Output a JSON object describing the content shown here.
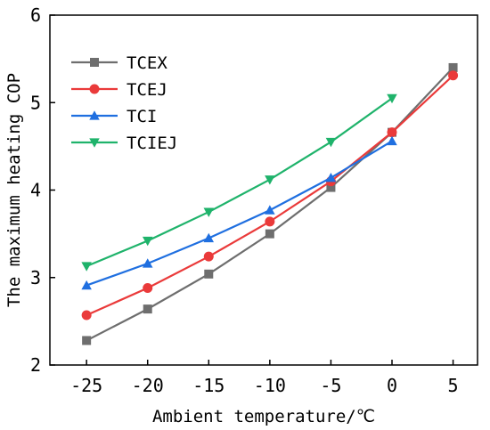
{
  "chart_data": {
    "type": "line",
    "title": "",
    "xlabel": "Ambient temperature/℃",
    "ylabel": "The maximum heating COP",
    "xlim": [
      -28,
      7
    ],
    "ylim": [
      2,
      6
    ],
    "xticks": [
      -25,
      -20,
      -15,
      -10,
      -5,
      0,
      5
    ],
    "xtick_labels": [
      "-25",
      "-20",
      "-15",
      "-10",
      "-5",
      "0",
      "5"
    ],
    "yticks": [
      2,
      3,
      4,
      5,
      6
    ],
    "ytick_labels": [
      "2",
      "3",
      "4",
      "5",
      "6"
    ],
    "grid": false,
    "legend_position": "top-left",
    "series": [
      {
        "name": "TCEX",
        "color": "#6e6e6e",
        "marker": "square",
        "x": [
          -25,
          -20,
          -15,
          -10,
          -5,
          0,
          5
        ],
        "y": [
          2.28,
          2.64,
          3.04,
          3.5,
          4.03,
          4.66,
          5.4
        ]
      },
      {
        "name": "TCEJ",
        "color": "#ea3a3a",
        "marker": "circle",
        "x": [
          -25,
          -20,
          -15,
          -10,
          -5,
          0,
          5
        ],
        "y": [
          2.57,
          2.88,
          3.24,
          3.64,
          4.1,
          4.66,
          5.31
        ]
      },
      {
        "name": "TCI",
        "color": "#1f6fe0",
        "marker": "triangle-up",
        "x": [
          -25,
          -20,
          -15,
          -10,
          -5,
          0
        ],
        "y": [
          2.91,
          3.16,
          3.45,
          3.77,
          4.14,
          4.56
        ]
      },
      {
        "name": "TCIEJ",
        "color": "#1fb36b",
        "marker": "triangle-down",
        "x": [
          -25,
          -20,
          -15,
          -10,
          -5,
          0
        ],
        "y": [
          3.13,
          3.42,
          3.75,
          4.12,
          4.55,
          5.05
        ]
      }
    ]
  }
}
